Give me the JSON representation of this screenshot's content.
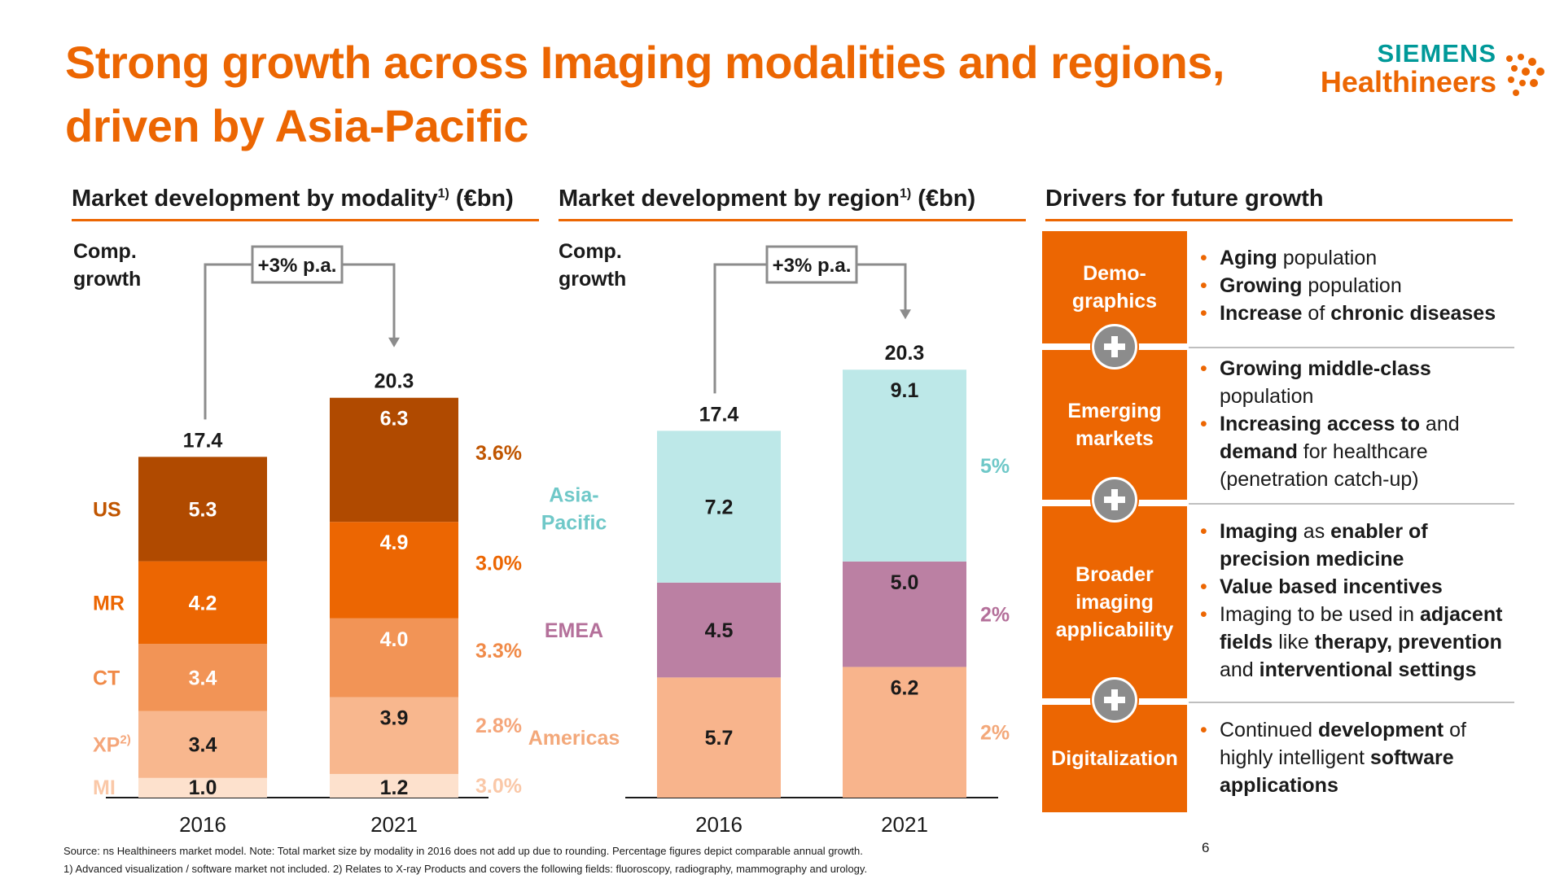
{
  "title": {
    "line1": "Strong growth across Imaging modalities and regions,",
    "line2": "driven by Asia-Pacific"
  },
  "logo": {
    "brand": "SIEMENS",
    "sub": "Healthineers"
  },
  "colors": {
    "accent": "#ec6602",
    "teal": "#009999",
    "us": "#b04a00",
    "mr": "#ec6602",
    "ct": "#f29456",
    "xp": "#f8b78e",
    "mi": "#fde1cd",
    "apac": "#bde8e8",
    "emea": "#bb80a3",
    "americas": "#f8b48c",
    "apac_text": "#6fc8c8",
    "emea_text": "#b4709a",
    "americas_text": "#f3a87a"
  },
  "sections": {
    "modality_head": "Market development by modality",
    "modality_sup": "1)",
    "modality_unit": " (€bn)",
    "region_head": "Market development by region",
    "region_sup": "1)",
    "region_unit": " (€bn)",
    "drivers_head": "Drivers for future growth"
  },
  "comp_growth": {
    "line1": "Comp.",
    "line2": "growth"
  },
  "chart_data": [
    {
      "type": "bar",
      "stacked": true,
      "title": "Market development by modality (€bn)",
      "categories": [
        "2016",
        "2021"
      ],
      "series": [
        {
          "name": "MI",
          "values": [
            1.0,
            1.2
          ],
          "growth": "3.0%",
          "color": "#fde1cd",
          "label_color": "#fac8a8"
        },
        {
          "name": "XP",
          "name_sup": "2)",
          "values": [
            3.4,
            3.9
          ],
          "growth": "2.8%",
          "color": "#f8b78e",
          "label_color": "#f5a67a"
        },
        {
          "name": "CT",
          "values": [
            3.4,
            4.0
          ],
          "growth": "3.3%",
          "color": "#f29456",
          "label_color": "#f08a48"
        },
        {
          "name": "MR",
          "values": [
            4.2,
            4.9
          ],
          "growth": "3.0%",
          "color": "#ec6602",
          "label_color": "#ec6602"
        },
        {
          "name": "US",
          "values": [
            5.3,
            6.3
          ],
          "growth": "3.6%",
          "color": "#b04a00",
          "label_color": "#c05500"
        }
      ],
      "totals": [
        "17.4",
        "20.3"
      ],
      "cagr_label": "+3% p.a."
    },
    {
      "type": "bar",
      "stacked": true,
      "title": "Market development by region (€bn)",
      "categories": [
        "2016",
        "2021"
      ],
      "series": [
        {
          "name": "Americas",
          "values": [
            5.7,
            6.2
          ],
          "growth": "2%",
          "color": "#f8b48c",
          "label_color": "#f3a87a"
        },
        {
          "name": "EMEA",
          "values": [
            4.5,
            5.0
          ],
          "growth": "2%",
          "color": "#bb80a3",
          "label_color": "#b4709a"
        },
        {
          "name": "Asia-Pacific",
          "name_lines": [
            "Asia-",
            "Pacific"
          ],
          "values": [
            7.2,
            9.1
          ],
          "growth": "5%",
          "color": "#bde8e8",
          "label_color": "#6fc8c8"
        }
      ],
      "totals": [
        "17.4",
        "20.3"
      ],
      "cagr_label": "+3% p.a."
    }
  ],
  "drivers": [
    {
      "label_lines": [
        "Demo-",
        "graphics"
      ],
      "bullets": [
        [
          {
            "t": "Aging",
            "b": true
          },
          {
            "t": " population",
            "b": false
          }
        ],
        [
          {
            "t": "Growing",
            "b": true
          },
          {
            "t": " population",
            "b": false
          }
        ],
        [
          {
            "t": "Increase",
            "b": true
          },
          {
            "t": " of ",
            "b": false
          },
          {
            "t": "chronic diseases",
            "b": true
          }
        ]
      ]
    },
    {
      "label_lines": [
        "Emerging",
        "markets"
      ],
      "bullets": [
        [
          {
            "t": "Growing middle-class",
            "b": true
          },
          {
            "t": " population",
            "b": false
          }
        ],
        [
          {
            "t": "Increasing access to",
            "b": true
          },
          {
            "t": " and ",
            "b": false
          },
          {
            "t": "demand",
            "b": true
          },
          {
            "t": " for healthcare (penetration catch-up)",
            "b": false
          }
        ]
      ]
    },
    {
      "label_lines": [
        "Broader",
        "imaging",
        "applicability"
      ],
      "bullets": [
        [
          {
            "t": "Imaging",
            "b": true
          },
          {
            "t": " as ",
            "b": false
          },
          {
            "t": "enabler of precision medicine",
            "b": true
          }
        ],
        [
          {
            "t": "Value based incentives",
            "b": true
          }
        ],
        [
          {
            "t": "Imaging to be used in ",
            "b": false
          },
          {
            "t": "adjacent fields",
            "b": true
          },
          {
            "t": " like ",
            "b": false
          },
          {
            "t": "therapy, prevention",
            "b": true
          },
          {
            "t": " and ",
            "b": false
          },
          {
            "t": "interventional settings",
            "b": true
          }
        ]
      ]
    },
    {
      "label_lines": [
        "Digitalization"
      ],
      "bullets": [
        [
          {
            "t": "Continued ",
            "b": false
          },
          {
            "t": "development",
            "b": true
          },
          {
            "t": " of highly intelligent ",
            "b": false
          },
          {
            "t": "software applications",
            "b": true
          }
        ]
      ]
    }
  ],
  "footnotes": {
    "line1": "Source:  ns Healthineers market model. Note: Total market size by modality in 2016 does not add up due to rounding. Percentage figures depict comparable annual growth.",
    "line2": "1) Advanced visualization / software market not included. 2) Relates to X-ray Products and covers the following fields: fluoroscopy, radiography, mammography and urology."
  },
  "page_number": "6"
}
